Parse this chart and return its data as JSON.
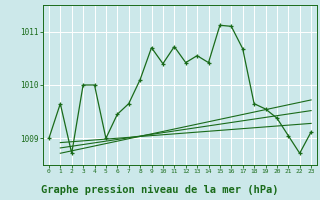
{
  "x": [
    0,
    1,
    2,
    3,
    4,
    5,
    6,
    7,
    8,
    9,
    10,
    11,
    12,
    13,
    14,
    15,
    16,
    17,
    18,
    19,
    20,
    21,
    22,
    23
  ],
  "y_main": [
    1009.0,
    1009.65,
    1008.72,
    1010.0,
    1010.0,
    1009.0,
    1009.45,
    1009.65,
    1010.1,
    1010.7,
    1010.4,
    1010.72,
    1010.42,
    1010.55,
    1010.42,
    1011.12,
    1011.1,
    1010.68,
    1009.65,
    1009.55,
    1009.38,
    1009.05,
    1008.72,
    1009.12
  ],
  "trend_lines": [
    [
      1,
      1008.92,
      23,
      1009.28
    ],
    [
      1,
      1008.82,
      23,
      1009.52
    ],
    [
      1,
      1008.72,
      23,
      1009.72
    ]
  ],
  "ylim": [
    1008.5,
    1011.5
  ],
  "xlim": [
    -0.5,
    23.5
  ],
  "yticks": [
    1009,
    1010,
    1011
  ],
  "xticks": [
    0,
    1,
    2,
    3,
    4,
    5,
    6,
    7,
    8,
    9,
    10,
    11,
    12,
    13,
    14,
    15,
    16,
    17,
    18,
    19,
    20,
    21,
    22,
    23
  ],
  "line_color": "#1a6b1a",
  "bg_color": "#cce8ea",
  "grid_color": "#b8d8da",
  "xlabel": "Graphe pression niveau de la mer (hPa)",
  "xlabel_color": "#1a6b1a",
  "xlabel_fontsize": 7.5
}
